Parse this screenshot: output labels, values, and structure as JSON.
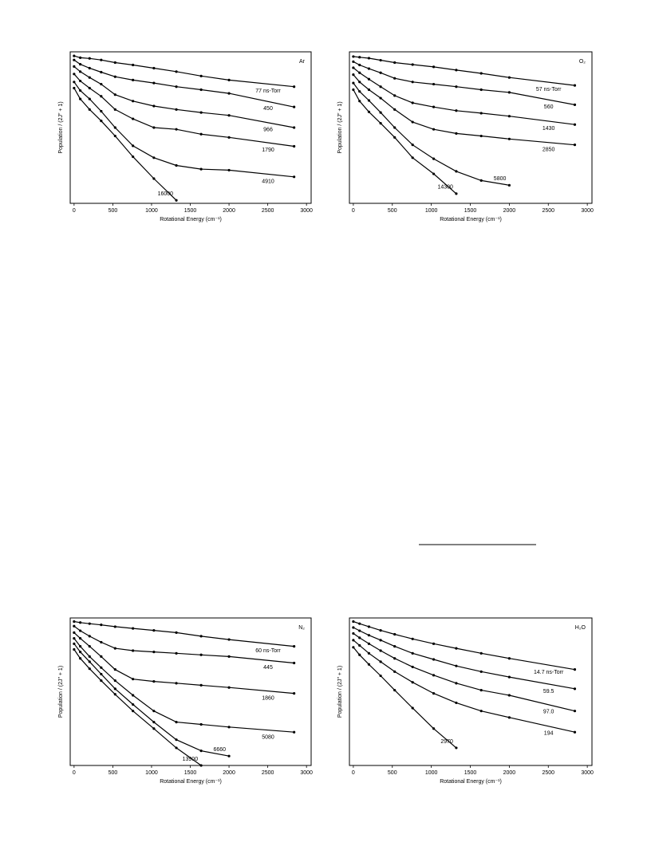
{
  "chart_data": [
    {
      "type": "line",
      "title": "Ar",
      "x_label": "Rotational Energy (cm⁻¹)",
      "y_label": "Population / (2J″ + 1)",
      "x": [
        0,
        80,
        200,
        350,
        530,
        760,
        1030,
        1320,
        1640,
        2000,
        2840
      ],
      "xlim": [
        -50,
        3060
      ],
      "xticks": [
        0,
        500,
        1000,
        1500,
        2000,
        2500,
        3000
      ],
      "ylim": [
        0.0001,
        1
      ],
      "log_scale": true,
      "color": "#000000",
      "series": [
        {
          "name": "77 ns-Torr",
          "values": [
            0.78,
            0.7,
            0.67,
            0.61,
            0.52,
            0.45,
            0.37,
            0.3,
            0.23,
            0.18,
            0.12
          ]
        },
        {
          "name": "450",
          "values": [
            0.61,
            0.47,
            0.37,
            0.29,
            0.22,
            0.18,
            0.15,
            0.12,
            0.1,
            0.08,
            0.035
          ]
        },
        {
          "name": "966",
          "values": [
            0.41,
            0.3,
            0.21,
            0.14,
            0.074,
            0.05,
            0.037,
            0.03,
            0.025,
            0.021,
            0.01
          ]
        },
        {
          "name": "1790",
          "values": [
            0.26,
            0.17,
            0.11,
            0.067,
            0.03,
            0.017,
            0.01,
            0.009,
            0.0067,
            0.0055,
            0.0032
          ]
        },
        {
          "name": "4910",
          "values": [
            0.16,
            0.095,
            0.057,
            0.027,
            0.01,
            0.0033,
            0.0016,
            0.001,
            0.0008,
            0.00075,
            0.0005
          ]
        },
        {
          "name": "16000",
          "values": [
            0.11,
            0.057,
            0.03,
            0.015,
            0.006,
            0.0017,
            0.00045,
            0.00012,
            null,
            null,
            null
          ]
        }
      ]
    },
    {
      "type": "line",
      "title": "O₂",
      "x_label": "Rotational Energy (cm⁻¹)",
      "y_label": "Population / (2J″ + 1)",
      "x": [
        0,
        80,
        200,
        350,
        530,
        760,
        1030,
        1320,
        1640,
        2000,
        2840
      ],
      "xlim": [
        -50,
        3060
      ],
      "xticks": [
        0,
        500,
        1000,
        1500,
        2000,
        2500,
        3000
      ],
      "ylim": [
        0.0001,
        1
      ],
      "log_scale": true,
      "color": "#000000",
      "series": [
        {
          "name": "57 ns-Torr",
          "values": [
            0.75,
            0.72,
            0.68,
            0.6,
            0.52,
            0.46,
            0.4,
            0.33,
            0.27,
            0.21,
            0.13
          ]
        },
        {
          "name": "560",
          "values": [
            0.55,
            0.45,
            0.36,
            0.28,
            0.2,
            0.16,
            0.14,
            0.12,
            0.1,
            0.085,
            0.04
          ]
        },
        {
          "name": "1430",
          "values": [
            0.38,
            0.28,
            0.19,
            0.12,
            0.07,
            0.045,
            0.035,
            0.028,
            0.024,
            0.02,
            0.012
          ]
        },
        {
          "name": "2850",
          "values": [
            0.25,
            0.16,
            0.1,
            0.06,
            0.03,
            0.014,
            0.009,
            0.007,
            0.006,
            0.005,
            0.0035
          ]
        },
        {
          "name": "5800",
          "values": [
            0.15,
            0.09,
            0.052,
            0.025,
            0.01,
            0.0035,
            0.0015,
            0.0007,
            0.0004,
            0.0003,
            null
          ]
        },
        {
          "name": "14300",
          "values": [
            0.1,
            0.05,
            0.026,
            0.013,
            0.0055,
            0.0016,
            0.0006,
            0.00018,
            null,
            null,
            null
          ]
        }
      ]
    },
    {
      "type": "line",
      "title": "N₂",
      "x_label": "Rotational Energy (cm⁻¹)",
      "y_label": "Population / (2J″ + 1)",
      "x": [
        0,
        80,
        200,
        350,
        530,
        760,
        1030,
        1320,
        1640,
        2000,
        2840
      ],
      "xlim": [
        -50,
        3060
      ],
      "xticks": [
        0,
        500,
        1000,
        1500,
        2000,
        2500,
        3000
      ],
      "ylim": [
        0.0001,
        1
      ],
      "log_scale": true,
      "color": "#000000",
      "series": [
        {
          "name": "60 ns-Torr",
          "values": [
            0.8,
            0.75,
            0.7,
            0.65,
            0.58,
            0.52,
            0.46,
            0.4,
            0.32,
            0.26,
            0.17
          ]
        },
        {
          "name": "445",
          "values": [
            0.6,
            0.45,
            0.32,
            0.22,
            0.15,
            0.13,
            0.12,
            0.11,
            0.1,
            0.09,
            0.06
          ]
        },
        {
          "name": "1860",
          "values": [
            0.4,
            0.28,
            0.17,
            0.09,
            0.04,
            0.022,
            0.019,
            0.017,
            0.015,
            0.013,
            0.009
          ]
        },
        {
          "name": "5080",
          "values": [
            0.28,
            0.17,
            0.09,
            0.045,
            0.02,
            0.008,
            0.003,
            0.0015,
            0.0013,
            0.0011,
            0.0008
          ]
        },
        {
          "name": "6660",
          "values": [
            0.2,
            0.12,
            0.065,
            0.03,
            0.012,
            0.0045,
            0.0015,
            0.0005,
            0.00025,
            0.00018,
            null
          ]
        },
        {
          "name": "13900",
          "values": [
            0.14,
            0.08,
            0.042,
            0.02,
            0.0085,
            0.003,
            0.001,
            0.0003,
            0.0001,
            null,
            null
          ]
        }
      ]
    },
    {
      "type": "line",
      "title": "H₂O",
      "x_label": "Rotational Energy (cm⁻¹)",
      "y_label": "Population / (2J″ + 1)",
      "x": [
        0,
        80,
        200,
        350,
        530,
        760,
        1030,
        1320,
        1640,
        2000,
        2840
      ],
      "xlim": [
        -50,
        3060
      ],
      "xticks": [
        0,
        500,
        1000,
        1500,
        2000,
        2500,
        3000
      ],
      "ylim": [
        0.0001,
        1
      ],
      "log_scale": true,
      "color": "#000000",
      "series": [
        {
          "name": "14.7 ns-Torr",
          "values": [
            0.8,
            0.7,
            0.58,
            0.46,
            0.36,
            0.27,
            0.2,
            0.15,
            0.11,
            0.08,
            0.04
          ]
        },
        {
          "name": "59.5",
          "values": [
            0.55,
            0.45,
            0.34,
            0.25,
            0.17,
            0.11,
            0.075,
            0.05,
            0.035,
            0.025,
            0.012
          ]
        },
        {
          "name": "97.0",
          "values": [
            0.38,
            0.29,
            0.2,
            0.13,
            0.08,
            0.047,
            0.028,
            0.017,
            0.011,
            0.008,
            0.003
          ]
        },
        {
          "name": "194",
          "values": [
            0.25,
            0.18,
            0.11,
            0.065,
            0.035,
            0.018,
            0.009,
            0.005,
            0.003,
            0.002,
            0.0008
          ]
        },
        {
          "name": "2970",
          "values": [
            0.16,
            0.1,
            0.055,
            0.027,
            0.011,
            0.0036,
            0.001,
            0.0003,
            null,
            null,
            null
          ]
        }
      ]
    }
  ]
}
